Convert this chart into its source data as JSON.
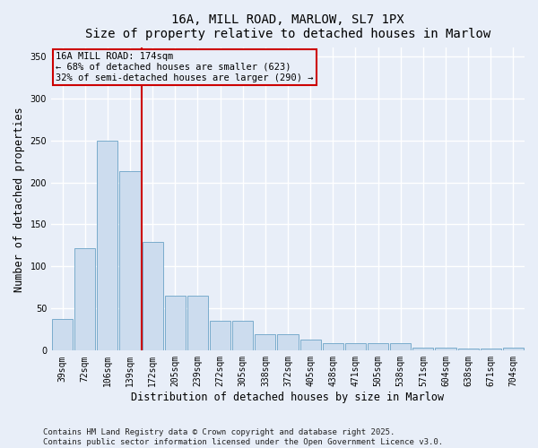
{
  "title_line1": "16A, MILL ROAD, MARLOW, SL7 1PX",
  "title_line2": "Size of property relative to detached houses in Marlow",
  "xlabel": "Distribution of detached houses by size in Marlow",
  "ylabel": "Number of detached properties",
  "categories": [
    "39sqm",
    "72sqm",
    "106sqm",
    "139sqm",
    "172sqm",
    "205sqm",
    "239sqm",
    "272sqm",
    "305sqm",
    "338sqm",
    "372sqm",
    "405sqm",
    "438sqm",
    "471sqm",
    "505sqm",
    "538sqm",
    "571sqm",
    "604sqm",
    "638sqm",
    "671sqm",
    "704sqm"
  ],
  "values": [
    38,
    122,
    250,
    213,
    129,
    65,
    65,
    35,
    35,
    20,
    20,
    13,
    9,
    9,
    9,
    9,
    4,
    4,
    2,
    2,
    4
  ],
  "bar_color": "#ccdcee",
  "bar_edge_color": "#7aaccc",
  "vline_position": 4,
  "marker_label_line1": "16A MILL ROAD: 174sqm",
  "marker_label_line2": "← 68% of detached houses are smaller (623)",
  "marker_label_line3": "32% of semi-detached houses are larger (290) →",
  "annotation_box_color": "#cc0000",
  "vline_color": "#cc0000",
  "ylim": [
    0,
    360
  ],
  "yticks": [
    0,
    50,
    100,
    150,
    200,
    250,
    300,
    350
  ],
  "background_color": "#e8eef8",
  "plot_bg_color": "#e8eef8",
  "grid_color": "#ffffff",
  "footer_text": "Contains HM Land Registry data © Crown copyright and database right 2025.\nContains public sector information licensed under the Open Government Licence v3.0.",
  "title_fontsize": 10,
  "axis_label_fontsize": 8.5,
  "tick_fontsize": 7,
  "footer_fontsize": 6.5,
  "annotation_fontsize": 7.5
}
